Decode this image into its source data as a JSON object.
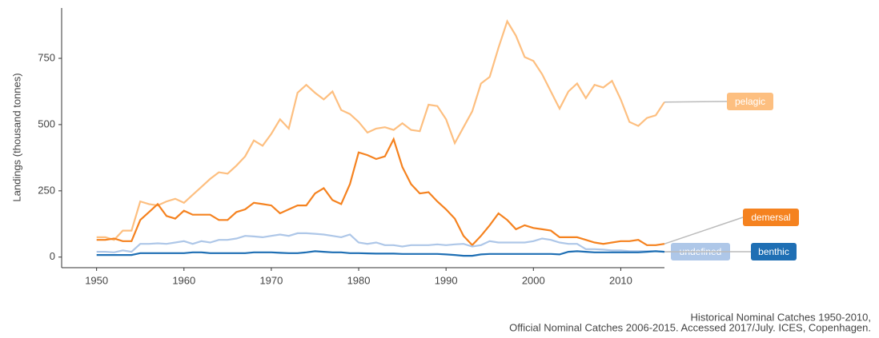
{
  "chart_data": {
    "type": "line",
    "y_label": "Landings (thousand tonnes)",
    "caption": [
      "Historical Nominal Catches 1950-2010,",
      "Official Nominal Catches 2006-2015. Accessed 2017/July. ICES, Copenhagen."
    ],
    "x": [
      1950,
      1951,
      1952,
      1953,
      1954,
      1955,
      1956,
      1957,
      1958,
      1959,
      1960,
      1961,
      1962,
      1963,
      1964,
      1965,
      1966,
      1967,
      1968,
      1969,
      1970,
      1971,
      1972,
      1973,
      1974,
      1975,
      1976,
      1977,
      1978,
      1979,
      1980,
      1981,
      1982,
      1983,
      1984,
      1985,
      1986,
      1987,
      1988,
      1989,
      1990,
      1991,
      1992,
      1993,
      1994,
      1995,
      1996,
      1997,
      1998,
      1999,
      2000,
      2001,
      2002,
      2003,
      2004,
      2005,
      2006,
      2007,
      2008,
      2009,
      2010,
      2011,
      2012,
      2013,
      2014,
      2015
    ],
    "xlim": [
      1946,
      2015
    ],
    "xticks": [
      1950,
      1960,
      1970,
      1980,
      1990,
      2000,
      2010
    ],
    "ylim": [
      -40,
      940
    ],
    "yticks": [
      0,
      250,
      500,
      750
    ],
    "grid": false,
    "series": [
      {
        "name": "pelagic",
        "color": "#fdbf80",
        "values": [
          75,
          75,
          65,
          100,
          100,
          210,
          200,
          195,
          210,
          220,
          205,
          235,
          265,
          295,
          320,
          315,
          345,
          380,
          440,
          420,
          465,
          520,
          485,
          620,
          650,
          620,
          595,
          625,
          555,
          540,
          510,
          470,
          485,
          490,
          480,
          505,
          480,
          475,
          575,
          570,
          520,
          430,
          490,
          550,
          655,
          680,
          790,
          890,
          835,
          755,
          740,
          690,
          625,
          560,
          625,
          655,
          600,
          650,
          640,
          665,
          595,
          510,
          495,
          525,
          535,
          585
        ]
      },
      {
        "name": "demersal",
        "color": "#f5821f",
        "values": [
          65,
          65,
          70,
          60,
          60,
          140,
          170,
          200,
          155,
          145,
          175,
          160,
          160,
          160,
          140,
          140,
          170,
          180,
          205,
          200,
          195,
          165,
          180,
          195,
          195,
          240,
          260,
          215,
          200,
          275,
          395,
          385,
          370,
          380,
          445,
          340,
          275,
          240,
          245,
          210,
          180,
          145,
          80,
          45,
          80,
          120,
          165,
          140,
          105,
          120,
          110,
          105,
          100,
          75,
          75,
          75,
          65,
          55,
          50,
          55,
          60,
          60,
          65,
          45,
          45,
          50
        ]
      },
      {
        "name": "undefined",
        "color": "#aec7e8",
        "values": [
          20,
          20,
          18,
          25,
          20,
          50,
          50,
          52,
          50,
          55,
          60,
          50,
          60,
          55,
          65,
          65,
          70,
          80,
          78,
          75,
          80,
          85,
          80,
          90,
          90,
          88,
          85,
          80,
          75,
          85,
          55,
          50,
          55,
          45,
          45,
          40,
          45,
          45,
          45,
          48,
          45,
          48,
          50,
          40,
          45,
          60,
          55,
          55,
          55,
          55,
          60,
          70,
          65,
          55,
          50,
          50,
          30,
          30,
          28,
          25,
          25,
          22,
          22,
          22,
          22,
          20
        ]
      },
      {
        "name": "benthic",
        "color": "#1f6fb4",
        "values": [
          8,
          8,
          8,
          8,
          8,
          15,
          15,
          15,
          15,
          15,
          15,
          18,
          18,
          15,
          15,
          15,
          15,
          15,
          18,
          18,
          18,
          16,
          15,
          15,
          18,
          22,
          20,
          18,
          18,
          15,
          15,
          14,
          13,
          13,
          13,
          12,
          12,
          12,
          12,
          12,
          10,
          8,
          5,
          5,
          10,
          12,
          12,
          12,
          12,
          12,
          12,
          12,
          12,
          10,
          20,
          22,
          20,
          18,
          18,
          18,
          18,
          18,
          18,
          20,
          22,
          20
        ]
      }
    ]
  }
}
